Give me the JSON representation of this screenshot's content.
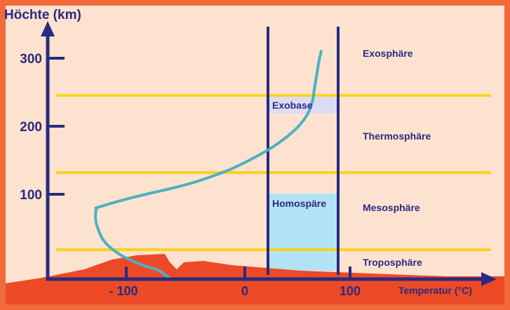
{
  "y_axis": {
    "label": "Höchte (km)",
    "ticks": [
      "300",
      "200",
      "100"
    ]
  },
  "x_axis": {
    "label": "Temperatur (°C)",
    "ticks": [
      "- 100",
      "0",
      "100"
    ]
  },
  "layers": {
    "exosphere": "Exosphäre",
    "thermosphere": "Thermosphäre",
    "mesosphere": "Mesosphäre",
    "troposphere": "Troposphäre"
  },
  "regions": {
    "exobase": "Exobase",
    "homosphere": "Homospäre"
  },
  "colors": {
    "background": "#fde3cf",
    "frame": "#f26a3a",
    "axis": "#2a2a80",
    "boundary_line": "#ffd21f",
    "ground": "#ec4a26",
    "curve": "#4fb0c0",
    "exobase_fill": "#dcdcf5",
    "homosphere_fill": "#b2e2f6"
  },
  "chart_data": {
    "type": "line",
    "series": [
      {
        "x": [
          -65,
          -70,
          -74,
          -80,
          -90,
          -110,
          -125,
          -132,
          -133,
          -132,
          -130,
          -100,
          -50,
          -15,
          10,
          30,
          45,
          55,
          60,
          62,
          64,
          66,
          68
        ],
        "y": [
          0,
          5,
          10,
          15,
          20,
          35,
          55,
          80,
          95,
          104,
          106,
          120,
          140,
          160,
          180,
          200,
          220,
          240,
          260,
          280,
          300,
          320,
          335
        ]
      }
    ],
    "xlim": [
      -180,
      170
    ],
    "ylim": [
      -20,
      360
    ]
  }
}
